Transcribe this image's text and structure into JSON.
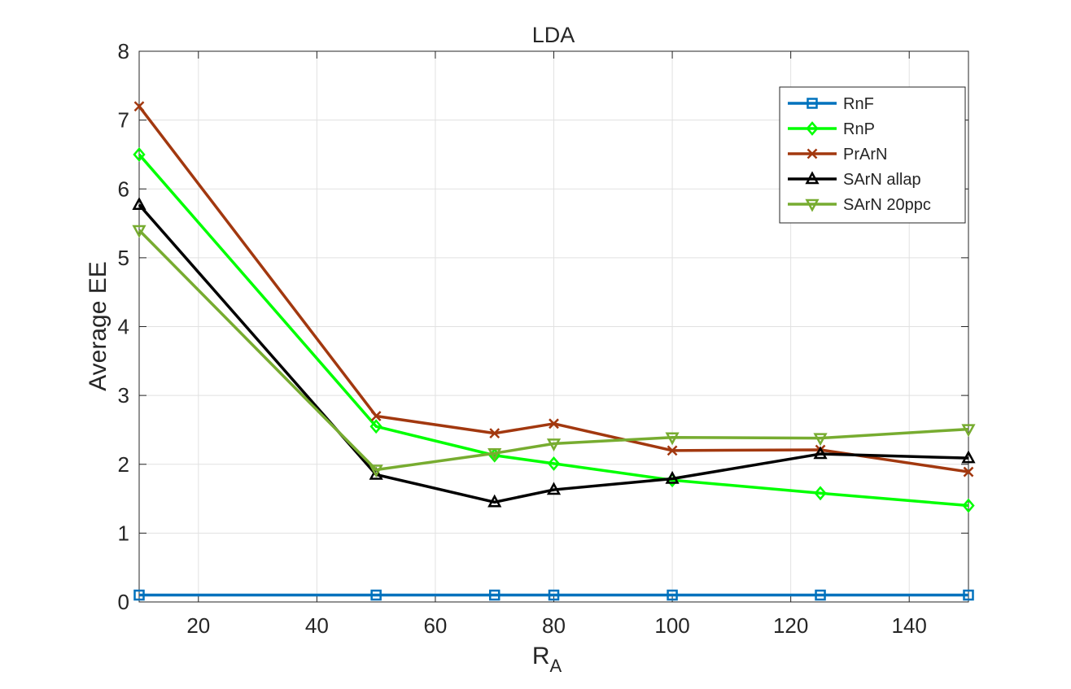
{
  "chart_data": {
    "type": "line",
    "title": "LDA",
    "xlabel": "R",
    "xlabel_subscript": "A",
    "ylabel": "Average EE",
    "xlim": [
      10,
      150
    ],
    "ylim": [
      0,
      8
    ],
    "xticks": [
      20,
      40,
      60,
      80,
      100,
      120,
      140
    ],
    "yticks": [
      0,
      1,
      2,
      3,
      4,
      5,
      6,
      7,
      8
    ],
    "grid": true,
    "legend_position": "top-right",
    "x": [
      10,
      50,
      70,
      80,
      100,
      125,
      150
    ],
    "series": [
      {
        "name": "RnF",
        "color": "#0072BD",
        "marker": "square",
        "values": [
          0.1,
          0.1,
          0.1,
          0.1,
          0.1,
          0.1,
          0.1
        ]
      },
      {
        "name": "RnP",
        "color": "#00FF00",
        "marker": "diamond",
        "values": [
          6.5,
          2.55,
          2.13,
          2.01,
          1.77,
          1.58,
          1.4
        ]
      },
      {
        "name": "PrArN",
        "color": "#A2380F",
        "marker": "x",
        "values": [
          7.2,
          2.7,
          2.45,
          2.59,
          2.2,
          2.21,
          1.89
        ]
      },
      {
        "name": "SArN allap",
        "color": "#000000",
        "marker": "triangle-up",
        "values": [
          5.77,
          1.85,
          1.45,
          1.63,
          1.79,
          2.15,
          2.09
        ]
      },
      {
        "name": "SArN 20ppc",
        "color": "#77AC30",
        "marker": "triangle-down",
        "values": [
          5.4,
          1.92,
          2.16,
          2.3,
          2.39,
          2.38,
          2.51
        ]
      }
    ]
  }
}
